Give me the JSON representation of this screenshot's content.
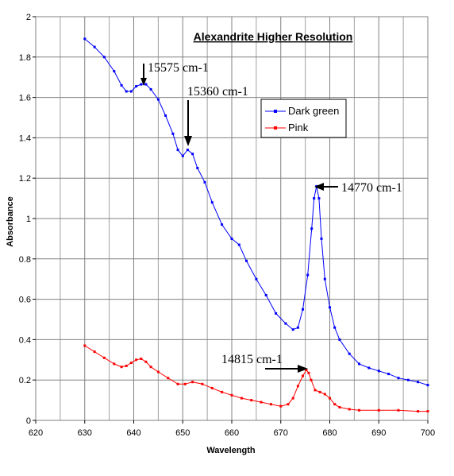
{
  "chart_data": {
    "type": "line",
    "title": "Alexandrite Higher Resolution",
    "xlabel": "Wavelength",
    "ylabel": "Absorbance",
    "xlim": [
      620,
      700
    ],
    "ylim": [
      0,
      2
    ],
    "xticks": [
      620,
      630,
      640,
      650,
      660,
      670,
      680,
      690,
      700
    ],
    "yticks": [
      0,
      0.2,
      0.4,
      0.6,
      0.8,
      1,
      1.2,
      1.4,
      1.6,
      1.8,
      2
    ],
    "xtick_labels": [
      "620",
      "630",
      "640",
      "650",
      "660",
      "670",
      "680",
      "690",
      "700"
    ],
    "ytick_labels": [
      "0",
      "0.2",
      "0.4",
      "0.6",
      "0.8",
      "1",
      "1.2",
      "1.4",
      "1.6",
      "1.8",
      "2"
    ],
    "grid": true,
    "legend_position": "top-right",
    "series": [
      {
        "name": "Dark green",
        "color": "#0000ff",
        "x": [
          630,
          632,
          634,
          636,
          637.5,
          638.5,
          639.5,
          640.5,
          641.5,
          642.5,
          643.5,
          645,
          646.5,
          648,
          649,
          650,
          651,
          652,
          653,
          654.5,
          656,
          658,
          660,
          661.5,
          663,
          665,
          667,
          669,
          671,
          672.5,
          673.5,
          674.5,
          675.5,
          676.3,
          676.8,
          677.3,
          677.8,
          678.3,
          679,
          680,
          681,
          682,
          684,
          686,
          688,
          690,
          692,
          694,
          696,
          698,
          700
        ],
        "y": [
          1.89,
          1.85,
          1.8,
          1.73,
          1.66,
          1.63,
          1.63,
          1.655,
          1.665,
          1.665,
          1.64,
          1.59,
          1.51,
          1.42,
          1.34,
          1.31,
          1.34,
          1.32,
          1.25,
          1.18,
          1.08,
          0.97,
          0.9,
          0.87,
          0.79,
          0.7,
          0.62,
          0.53,
          0.48,
          0.45,
          0.46,
          0.55,
          0.72,
          0.95,
          1.1,
          1.16,
          1.1,
          0.9,
          0.7,
          0.56,
          0.46,
          0.4,
          0.33,
          0.28,
          0.26,
          0.245,
          0.23,
          0.21,
          0.2,
          0.19,
          0.175
        ]
      },
      {
        "name": "Pink",
        "color": "#ff0000",
        "x": [
          630,
          632,
          634,
          636,
          637.5,
          638.5,
          639.5,
          640.5,
          641.5,
          642.5,
          643.5,
          645,
          647,
          649,
          650.5,
          652,
          654,
          656,
          658,
          660,
          662,
          664,
          666,
          668,
          670,
          671.5,
          672.5,
          673.5,
          674.5,
          675.2,
          675.7,
          676.2,
          677,
          678,
          679,
          680,
          681,
          682,
          684,
          686,
          690,
          694,
          698,
          700
        ],
        "y": [
          0.37,
          0.34,
          0.31,
          0.28,
          0.265,
          0.27,
          0.285,
          0.3,
          0.305,
          0.29,
          0.265,
          0.24,
          0.21,
          0.18,
          0.18,
          0.19,
          0.18,
          0.16,
          0.14,
          0.125,
          0.11,
          0.1,
          0.09,
          0.08,
          0.07,
          0.08,
          0.11,
          0.17,
          0.22,
          0.25,
          0.235,
          0.2,
          0.15,
          0.14,
          0.13,
          0.11,
          0.08,
          0.065,
          0.055,
          0.05,
          0.05,
          0.05,
          0.045,
          0.045
        ]
      }
    ],
    "annotations": [
      {
        "text": "15575 cm-1",
        "x": 642,
        "y": 1.665
      },
      {
        "text": "15360 cm-1",
        "x": 651,
        "y": 1.34
      },
      {
        "text": "14770 cm-1",
        "x": 677.2,
        "y": 1.16
      },
      {
        "text": "14815 cm-1",
        "x": 675.3,
        "y": 0.25
      }
    ]
  }
}
